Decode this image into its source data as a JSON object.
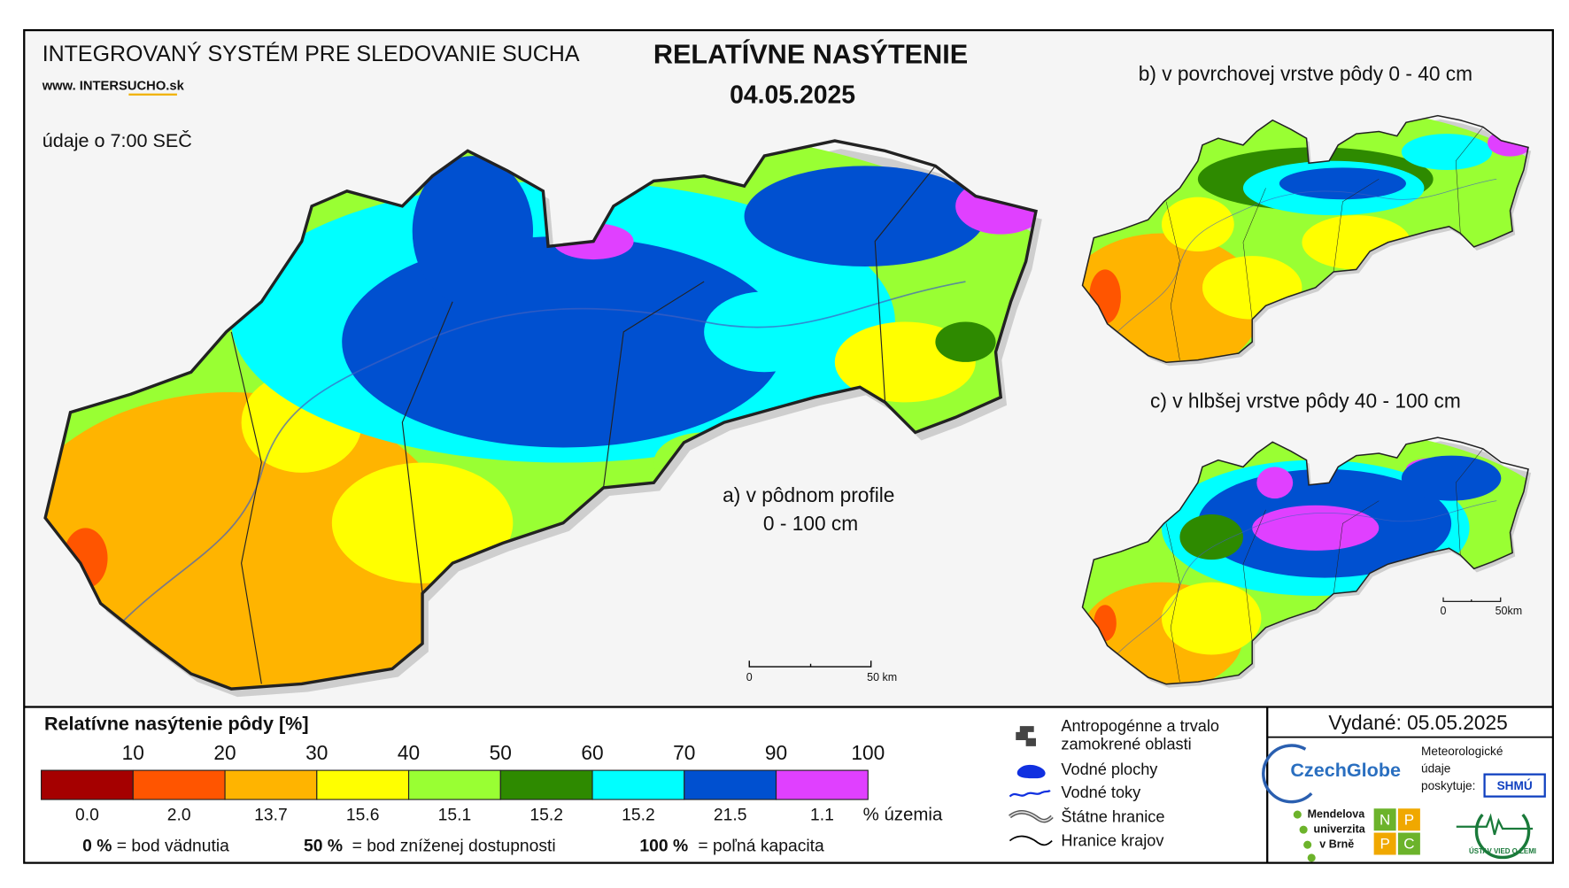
{
  "header": {
    "system": "INTEGROVANÝ SYSTÉM PRE SLEDOVANIE SUCHA",
    "website": "www. INTERSUCHO.sk",
    "time_note": "údaje o 7:00 SEČ",
    "title": "RELATÍVNE NASÝTENIE",
    "date": "04.05.2025"
  },
  "maps": {
    "a": {
      "label": "a) v pôdnom profile",
      "depth": "0 - 100 cm",
      "scale_start": "0",
      "scale_end": "50 km"
    },
    "b": {
      "label": "b) v povrchovej vrstve pôdy 0 - 40 cm"
    },
    "c": {
      "label": "c) v hlbšej vrstve pôdy 40 - 100 cm",
      "scale_start": "0",
      "scale_end": "50km"
    }
  },
  "legend": {
    "title": "Relatívne nasýtenie pôdy [%]",
    "breaks": [
      10,
      20,
      30,
      40,
      50,
      60,
      70,
      90,
      100
    ],
    "classes": [
      {
        "color": "#a50000",
        "share": "0.0"
      },
      {
        "color": "#ff5500",
        "share": "2.0"
      },
      {
        "color": "#ffb400",
        "share": "13.7"
      },
      {
        "color": "#ffff00",
        "share": "15.6"
      },
      {
        "color": "#99ff33",
        "share": "15.1"
      },
      {
        "color": "#2e8a00",
        "share": "15.2"
      },
      {
        "color": "#00ffff",
        "share": "15.2"
      },
      {
        "color": "#0050d0",
        "share": "21.5"
      },
      {
        "color": "#e040ff",
        "share": "1.1"
      }
    ],
    "share_unit": "% územia",
    "notes": [
      {
        "value": "0 %",
        "text": "= bod vädnutia"
      },
      {
        "value": "50 %",
        "text": "= bod zníženej dostupnosti"
      },
      {
        "value": "100 %",
        "text": "= poľná kapacita"
      }
    ]
  },
  "symbols": [
    [
      "Antropogénne a trvalo",
      "zamokrené oblasti"
    ],
    [
      "Vodné plochy"
    ],
    [
      "Vodné toky"
    ],
    [
      "Štátne hranice"
    ],
    [
      "Hranice krajov"
    ]
  ],
  "footer": {
    "issued": "Vydané: 05.05.2025",
    "provider": [
      "Meteorologické",
      "údaje",
      "poskytuje:"
    ],
    "czechglobe": "CzechGlobe",
    "shmu": "SHMÚ",
    "mendelu": [
      "Mendelova",
      "univerzita",
      "v Brně"
    ],
    "nppc": [
      "N",
      "P",
      "P",
      "C"
    ],
    "ustav": "ÚSTAV VIED O ZEMI"
  }
}
